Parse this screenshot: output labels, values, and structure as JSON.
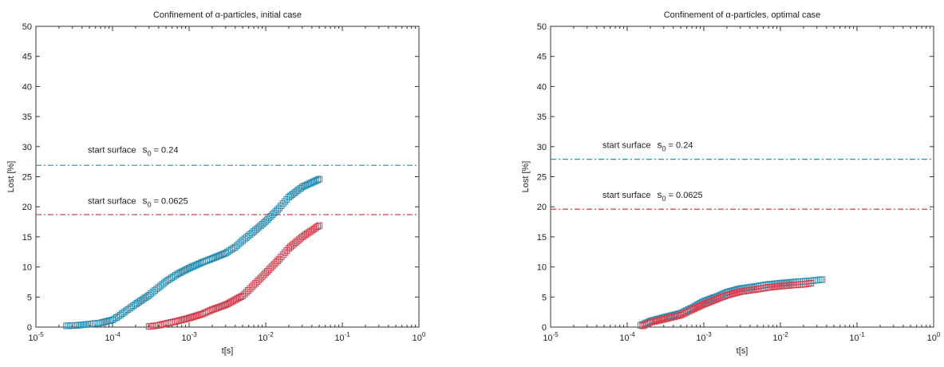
{
  "chart_data": [
    {
      "type": "scatter",
      "title": "Confinement of α-particles, initial case",
      "xlabel": "t[s]",
      "ylabel": "Lost [%]",
      "xscale": "log",
      "xlim": [
        1e-05,
        1
      ],
      "ylim": [
        0,
        50
      ],
      "x_ticks": [
        {
          "base": "10",
          "exp": "-5"
        },
        {
          "base": "10",
          "exp": "-4"
        },
        {
          "base": "10",
          "exp": "-3"
        },
        {
          "base": "10",
          "exp": "-2"
        },
        {
          "base": "10",
          "exp": "-1"
        },
        {
          "base": "10",
          "exp": "0"
        }
      ],
      "y_ticks": [
        "0",
        "5",
        "10",
        "15",
        "20",
        "25",
        "30",
        "35",
        "40",
        "45",
        "50"
      ],
      "grid": false,
      "annotations": [
        {
          "prefix": "start surface",
          "sym": "s",
          "sub": "0",
          "value": "= 0.24",
          "at_y": 29.5
        },
        {
          "prefix": "start surface",
          "sym": "s",
          "sub": "0",
          "value": "= 0.0625",
          "at_y": 21.0
        }
      ],
      "reference_lines": [
        {
          "y": 26.9,
          "color": "#2d8cb4",
          "style": "dash-dot"
        },
        {
          "y": 18.7,
          "color": "#d04050",
          "style": "dash-dot"
        }
      ],
      "series": [
        {
          "color": "#2a8cb0",
          "marker": "square",
          "points": [
            [
              2.5e-05,
              0.2
            ],
            [
              3.5e-05,
              0.3
            ],
            [
              5e-05,
              0.5
            ],
            [
              7e-05,
              0.7
            ],
            [
              0.0001,
              1.2
            ],
            [
              0.00012,
              1.8
            ],
            [
              0.00015,
              2.7
            ],
            [
              0.0002,
              3.8
            ],
            [
              0.0003,
              5.3
            ],
            [
              0.0004,
              6.6
            ],
            [
              0.0005,
              7.6
            ],
            [
              0.0007,
              8.8
            ],
            [
              0.001,
              9.8
            ],
            [
              0.0015,
              10.8
            ],
            [
              0.002,
              11.4
            ],
            [
              0.003,
              12.3
            ],
            [
              0.004,
              13.3
            ],
            [
              0.005,
              14.4
            ],
            [
              0.007,
              15.9
            ],
            [
              0.01,
              17.6
            ],
            [
              0.015,
              19.8
            ],
            [
              0.02,
              21.6
            ],
            [
              0.03,
              23.3
            ],
            [
              0.05,
              24.6
            ]
          ]
        },
        {
          "color": "#d04050",
          "marker": "square",
          "points": [
            [
              0.0003,
              0.1
            ],
            [
              0.0004,
              0.3
            ],
            [
              0.0005,
              0.6
            ],
            [
              0.0007,
              1.0
            ],
            [
              0.001,
              1.5
            ],
            [
              0.0015,
              2.2
            ],
            [
              0.002,
              2.9
            ],
            [
              0.003,
              3.7
            ],
            [
              0.005,
              5.2
            ],
            [
              0.007,
              7.0
            ],
            [
              0.01,
              9.0
            ],
            [
              0.015,
              11.3
            ],
            [
              0.02,
              13.1
            ],
            [
              0.03,
              15.0
            ],
            [
              0.05,
              16.9
            ]
          ]
        }
      ]
    },
    {
      "type": "scatter",
      "title": "Confinement of α-particles, optimal case",
      "xlabel": "t[s]",
      "ylabel": "Lost [%]",
      "xscale": "log",
      "xlim": [
        1e-05,
        1
      ],
      "ylim": [
        0,
        50
      ],
      "x_ticks": [
        {
          "base": "10",
          "exp": "-5"
        },
        {
          "base": "10",
          "exp": "-4"
        },
        {
          "base": "10",
          "exp": "-3"
        },
        {
          "base": "10",
          "exp": "-2"
        },
        {
          "base": "10",
          "exp": "-1"
        },
        {
          "base": "10",
          "exp": "0"
        }
      ],
      "y_ticks": [
        "0",
        "5",
        "10",
        "15",
        "20",
        "25",
        "30",
        "35",
        "40",
        "45",
        "50"
      ],
      "grid": false,
      "annotations": [
        {
          "prefix": "start surface",
          "sym": "s",
          "sub": "0",
          "value": "= 0.24",
          "at_y": 30.3
        },
        {
          "prefix": "start surface",
          "sym": "s",
          "sub": "0",
          "value": "= 0.0625",
          "at_y": 22.0
        }
      ],
      "reference_lines": [
        {
          "y": 27.9,
          "color": "#2d8cb4",
          "style": "dash-dot"
        },
        {
          "y": 19.6,
          "color": "#d04050",
          "style": "dash-dot"
        }
      ],
      "series": [
        {
          "color": "#2a8cb0",
          "marker": "square",
          "points": [
            [
              0.00015,
              0.3
            ],
            [
              0.0002,
              1.0
            ],
            [
              0.0003,
              1.6
            ],
            [
              0.0005,
              2.3
            ],
            [
              0.0007,
              3.2
            ],
            [
              0.001,
              4.3
            ],
            [
              0.0015,
              5.1
            ],
            [
              0.002,
              5.8
            ],
            [
              0.003,
              6.4
            ],
            [
              0.005,
              6.8
            ],
            [
              0.007,
              7.1
            ],
            [
              0.01,
              7.3
            ],
            [
              0.015,
              7.5
            ],
            [
              0.02,
              7.6
            ],
            [
              0.025,
              7.7
            ],
            [
              0.035,
              7.9
            ]
          ]
        },
        {
          "color": "#d04050",
          "marker": "square",
          "points": [
            [
              0.00016,
              0.2
            ],
            [
              0.0002,
              0.8
            ],
            [
              0.0003,
              1.3
            ],
            [
              0.0005,
              2.0
            ],
            [
              0.0007,
              2.9
            ],
            [
              0.001,
              3.8
            ],
            [
              0.0015,
              4.7
            ],
            [
              0.002,
              5.3
            ],
            [
              0.003,
              5.9
            ],
            [
              0.005,
              6.3
            ],
            [
              0.007,
              6.6
            ],
            [
              0.01,
              6.8
            ],
            [
              0.015,
              7.0
            ],
            [
              0.02,
              7.1
            ],
            [
              0.025,
              7.3
            ]
          ]
        }
      ]
    }
  ]
}
